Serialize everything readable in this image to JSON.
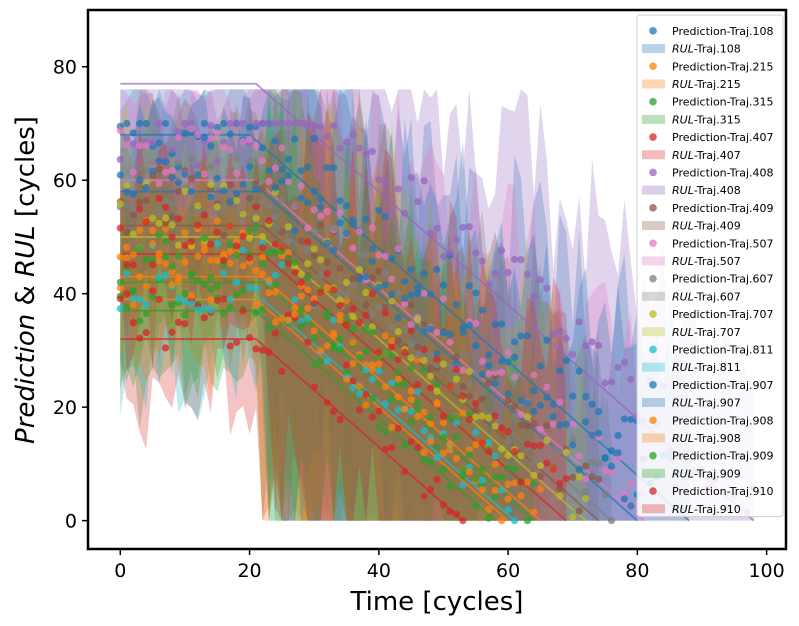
{
  "chart_data": {
    "type": "scatter",
    "title": "",
    "xlabel": "Time [cycles]",
    "ylabel": {
      "pre": "Prediction",
      "mid": " & ",
      "italic": "RUL",
      "post": " [cycles]"
    },
    "xlim": [
      -5,
      103
    ],
    "ylim": [
      -5,
      90
    ],
    "xticks": [
      0,
      20,
      40,
      60,
      80,
      100
    ],
    "yticks": [
      0,
      20,
      40,
      60,
      80
    ],
    "grid": false,
    "legend_position": "top-right",
    "legend_rul_italic": "RUL",
    "trajectories": [
      {
        "id": "108",
        "pred_label": "Prediction-Traj.108",
        "rul_suffix": "-Traj.108",
        "color": "#1f77b4",
        "initial_rul": 68,
        "knee_x": 20,
        "end_x": 88
      },
      {
        "id": "215",
        "pred_label": "Prediction-Traj.215",
        "rul_suffix": "-Traj.215",
        "color": "#ff7f0e",
        "initial_rul": 43,
        "knee_x": 22,
        "end_x": 65
      },
      {
        "id": "315",
        "pred_label": "Prediction-Traj.315",
        "rul_suffix": "-Traj.315",
        "color": "#2ca02c",
        "initial_rul": 37,
        "knee_x": 21,
        "end_x": 58
      },
      {
        "id": "407",
        "pred_label": "Prediction-Traj.407",
        "rul_suffix": "-Traj.407",
        "color": "#d62728",
        "initial_rul": 32,
        "knee_x": 21,
        "end_x": 53
      },
      {
        "id": "408",
        "pred_label": "Prediction-Traj.408",
        "rul_suffix": "-Traj.408",
        "color": "#9467bd",
        "initial_rul": 77,
        "knee_x": 21,
        "end_x": 98
      },
      {
        "id": "409",
        "pred_label": "Prediction-Traj.409",
        "rul_suffix": "-Traj.409",
        "color": "#8c564b",
        "initial_rul": 52,
        "knee_x": 22,
        "end_x": 74
      },
      {
        "id": "507",
        "pred_label": "Prediction-Traj.507",
        "rul_suffix": "-Traj.507",
        "color": "#e377c2",
        "initial_rul": 60,
        "knee_x": 21,
        "end_x": 81
      },
      {
        "id": "607",
        "pred_label": "Prediction-Traj.607",
        "rul_suffix": "-Traj.607",
        "color": "#7f7f7f",
        "initial_rul": 54,
        "knee_x": 22,
        "end_x": 76
      },
      {
        "id": "707",
        "pred_label": "Prediction-Traj.707",
        "rul_suffix": "-Traj.707",
        "color": "#bcbd22",
        "initial_rul": 50,
        "knee_x": 22,
        "end_x": 72
      },
      {
        "id": "811",
        "pred_label": "Prediction-Traj.811",
        "rul_suffix": "-Traj.811",
        "color": "#17becf",
        "initial_rul": 39,
        "knee_x": 22,
        "end_x": 61
      },
      {
        "id": "907",
        "pred_label": "Prediction-Traj.907",
        "rul_suffix": "-Traj.907",
        "color": "#1f77b4",
        "initial_rul": 58,
        "knee_x": 22,
        "end_x": 80
      },
      {
        "id": "908",
        "pred_label": "Prediction-Traj.908",
        "rul_suffix": "-Traj.908",
        "color": "#ff7f0e",
        "initial_rul": 39,
        "knee_x": 21,
        "end_x": 60
      },
      {
        "id": "909",
        "pred_label": "Prediction-Traj.909",
        "rul_suffix": "-Traj.909",
        "color": "#2ca02c",
        "initial_rul": 42,
        "knee_x": 22,
        "end_x": 64
      },
      {
        "id": "910",
        "pred_label": "Prediction-Traj.910",
        "rul_suffix": "-Traj.910",
        "color": "#d62728",
        "initial_rul": 47,
        "knee_x": 22,
        "end_x": 69
      }
    ]
  }
}
